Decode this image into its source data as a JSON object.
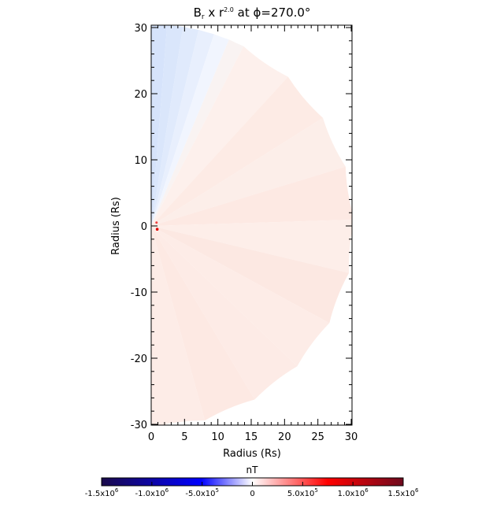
{
  "chart_data": {
    "type": "heatmap",
    "title_parts": {
      "b": "B",
      "sub": "r",
      "mid": " x r",
      "exp": "2.0",
      "tail": " at ϕ=270.0°"
    },
    "xlabel": "Radius (Rs)",
    "ylabel": "Radius (Rs)",
    "xlim": [
      0,
      30
    ],
    "ylim": [
      -30,
      30
    ],
    "xticks": [
      "0",
      "5",
      "10",
      "15",
      "20",
      "25",
      "30"
    ],
    "yticks": [
      "30",
      "20",
      "10",
      "0",
      "-10",
      "-20",
      "-30"
    ],
    "grid": false,
    "domain_shape": "half-disk, radius 30 Rs",
    "colorbar": {
      "label": "nT",
      "range": [
        -1500000,
        1500000
      ],
      "ticks": [
        {
          "m": "-1.5x10",
          "e": "6"
        },
        {
          "m": "-1.0x10",
          "e": "6"
        },
        {
          "m": "-5.0x10",
          "e": "5"
        },
        {
          "m": "0",
          "e": ""
        },
        {
          "m": "5.0x10",
          "e": "5"
        },
        {
          "m": "1.0x10",
          "e": "6"
        },
        {
          "m": "1.5x10",
          "e": "6"
        }
      ],
      "colors": [
        "#1a0a4a",
        "#0000ff",
        "#ffffff",
        "#ff0000",
        "#6e0a1e"
      ]
    },
    "regions": [
      {
        "description_angle_deg": [
          65,
          90
        ],
        "value_approx": -150000,
        "color": "#dde8fb"
      },
      {
        "description_angle_deg": [
          -90,
          65
        ],
        "value_approx": 80000,
        "color": "#fdebe6"
      }
    ]
  }
}
